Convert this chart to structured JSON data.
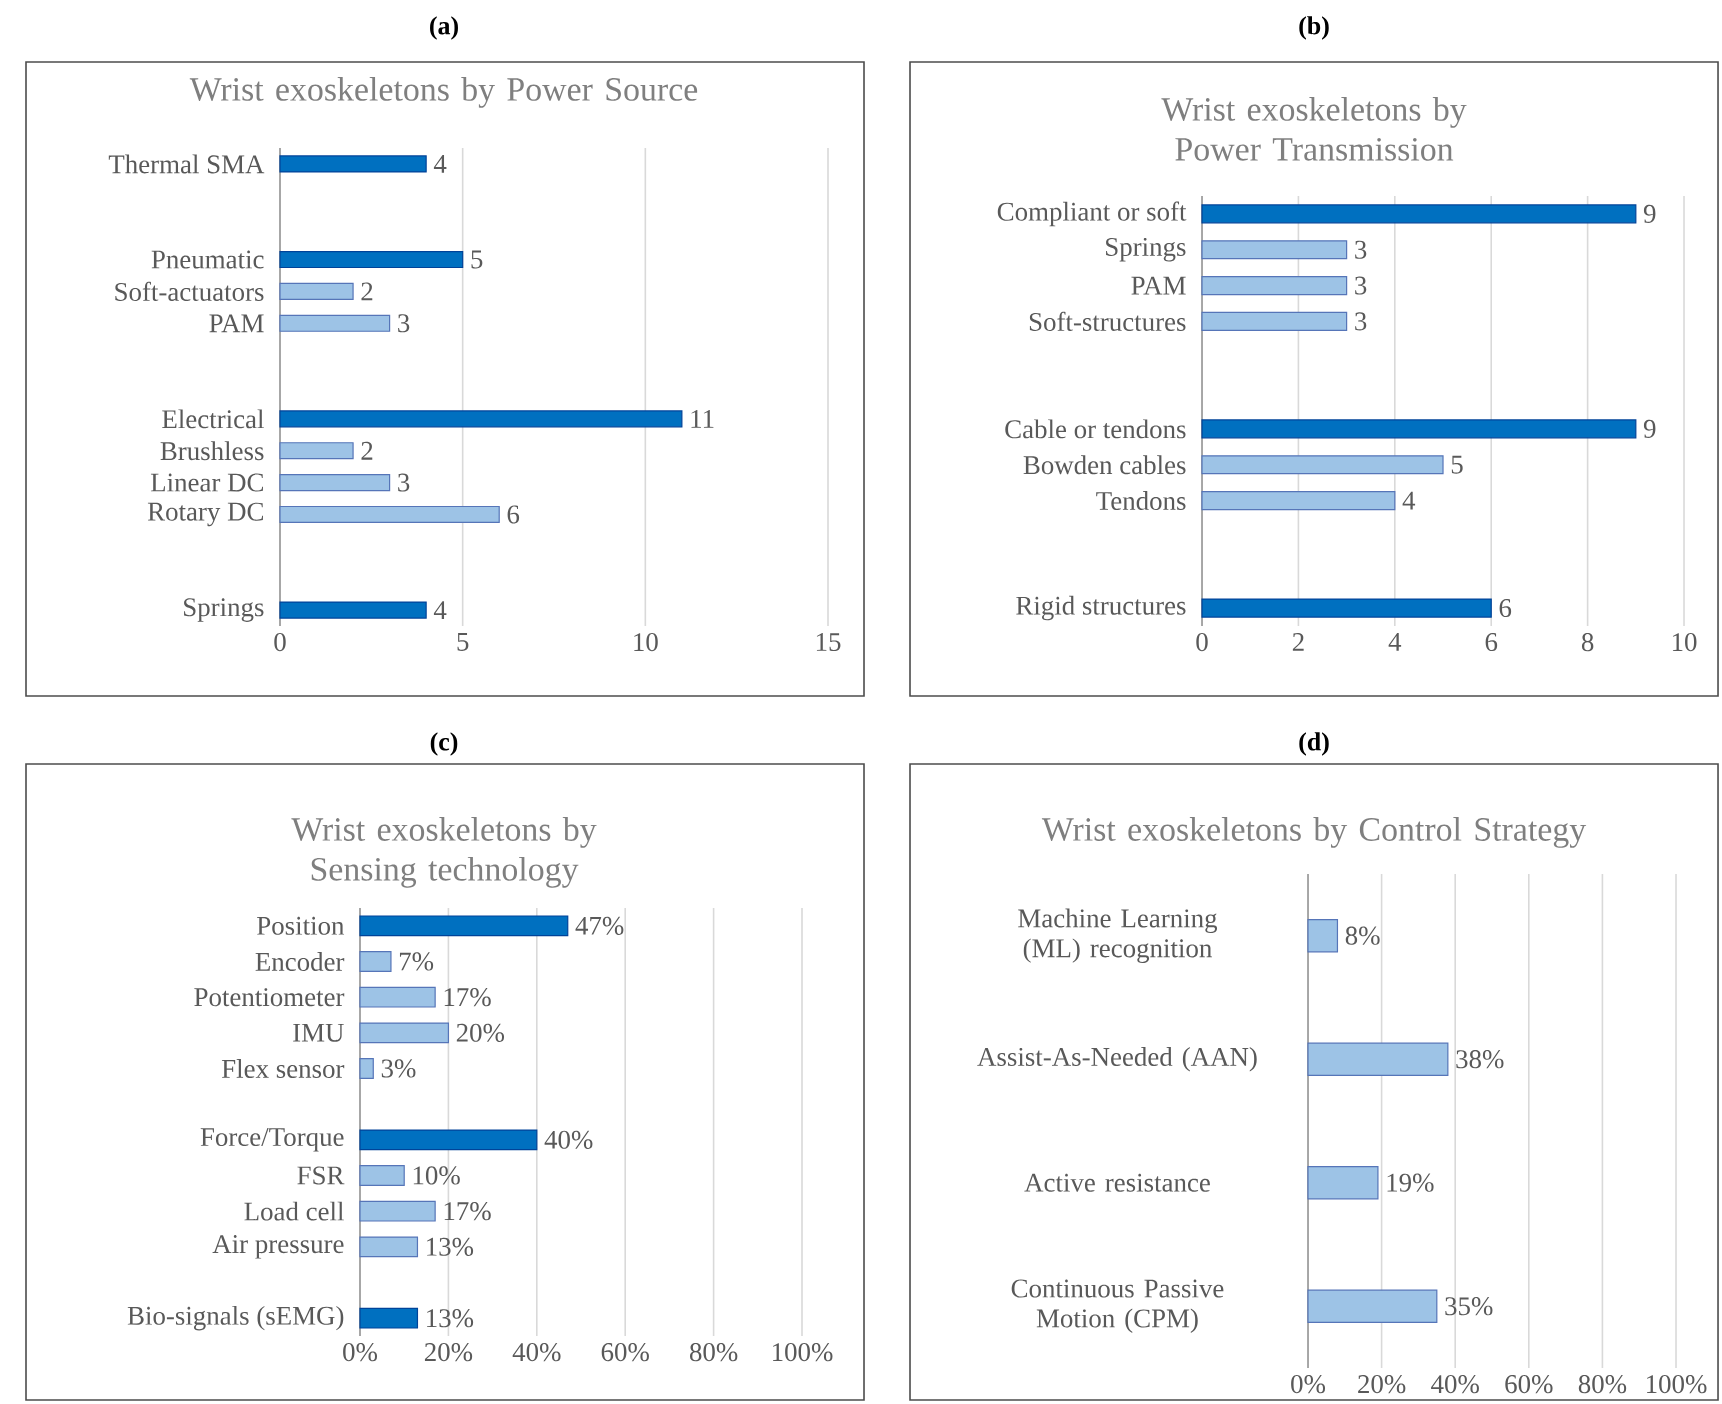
{
  "chart_data": [
    {
      "type": "bar",
      "orientation": "horizontal",
      "title": "Wrist exoskeletons by Power Source",
      "annotations": [
        "(a)"
      ],
      "categories": [
        "Thermal SMA",
        null,
        null,
        "Pneumatic",
        "Soft-actuators",
        "PAM",
        null,
        null,
        "Electrical",
        "Brushless",
        "Linear DC",
        "Rotary DC",
        null,
        null,
        "Springs"
      ],
      "values": [
        4,
        null,
        null,
        5,
        2,
        3,
        null,
        null,
        11,
        2,
        3,
        6,
        null,
        null,
        4
      ],
      "colors": [
        "#0070c0",
        null,
        null,
        "#0070c0",
        "#9dc3e6",
        "#9dc3e6",
        null,
        null,
        "#0070c0",
        "#9dc3e6",
        "#9dc3e6",
        "#9dc3e6",
        null,
        null,
        "#0070c0"
      ],
      "xlim": [
        0,
        15
      ],
      "xticks": [
        0,
        5,
        10,
        15
      ],
      "grid": "x",
      "data_labels": true
    },
    {
      "type": "bar",
      "orientation": "horizontal",
      "title": "Wrist exoskeletons by Power Transmission",
      "annotations": [
        "(b)"
      ],
      "categories": [
        "Compliant or soft",
        "Springs",
        "PAM",
        "Soft-structures",
        null,
        null,
        "Cable or tendons",
        "Bowden cables",
        "Tendons",
        null,
        null,
        "Rigid structures"
      ],
      "values": [
        9,
        3,
        3,
        3,
        null,
        null,
        9,
        5,
        4,
        null,
        null,
        6
      ],
      "colors": [
        "#0070c0",
        "#9dc3e6",
        "#9dc3e6",
        "#9dc3e6",
        null,
        null,
        "#0070c0",
        "#9dc3e6",
        "#9dc3e6",
        null,
        null,
        "#0070c0"
      ],
      "xlim": [
        0,
        10
      ],
      "xticks": [
        0,
        2,
        4,
        6,
        8,
        10
      ],
      "grid": "x",
      "data_labels": true
    },
    {
      "type": "bar",
      "orientation": "horizontal",
      "title": "Wrist exoskeletons by Sensing technology",
      "annotations": [
        "(c)"
      ],
      "categories": [
        "Position",
        "Encoder",
        "Potentiometer",
        "IMU",
        "Flex sensor",
        null,
        "Force/Torque",
        "FSR",
        "Load cell",
        "Air pressure",
        null,
        "Bio-signals (sEMG)"
      ],
      "values": [
        47,
        7,
        17,
        20,
        3,
        null,
        40,
        10,
        17,
        13,
        null,
        13
      ],
      "value_labels": [
        "47%",
        "7%",
        "17%",
        "20%",
        "3%",
        null,
        "40%",
        "10%",
        "17%",
        "13%",
        null,
        "13%"
      ],
      "colors": [
        "#0070c0",
        "#9dc3e6",
        "#9dc3e6",
        "#9dc3e6",
        "#9dc3e6",
        null,
        "#0070c0",
        "#9dc3e6",
        "#9dc3e6",
        "#9dc3e6",
        null,
        "#0070c0"
      ],
      "xlim": [
        0,
        100
      ],
      "xticks": [
        {
          "value": 0,
          "label": "0%"
        },
        {
          "value": 20,
          "label": "20%"
        },
        {
          "value": 40,
          "label": "40%"
        },
        {
          "value": 60,
          "label": "60%"
        },
        {
          "value": 80,
          "label": "80%"
        },
        {
          "value": 100,
          "label": "100%"
        }
      ],
      "grid": "x"
    },
    {
      "type": "bar",
      "orientation": "horizontal",
      "title": "Wrist exoskeletons by Control Strategy",
      "annotations": [
        "(d)"
      ],
      "categories": [
        "Machine Learning (ML) recognition",
        "Assist-As-Needed (AAN)",
        "Active resistance",
        "Continuous Passive Motion (CPM)"
      ],
      "values": [
        8,
        38,
        19,
        35
      ],
      "value_labels": [
        "8%",
        "38%",
        "19%",
        "35%"
      ],
      "colors": [
        "#9dc3e6",
        "#9dc3e6",
        "#9dc3e6",
        "#9dc3e6"
      ],
      "xlim": [
        0,
        100
      ],
      "xticks": [
        {
          "value": 0,
          "label": "0%"
        },
        {
          "value": 20,
          "label": "20%"
        },
        {
          "value": 40,
          "label": "40%"
        },
        {
          "value": 60,
          "label": "60%"
        },
        {
          "value": 80,
          "label": "80%"
        },
        {
          "value": 100,
          "label": "100%"
        }
      ],
      "grid": "x"
    }
  ]
}
